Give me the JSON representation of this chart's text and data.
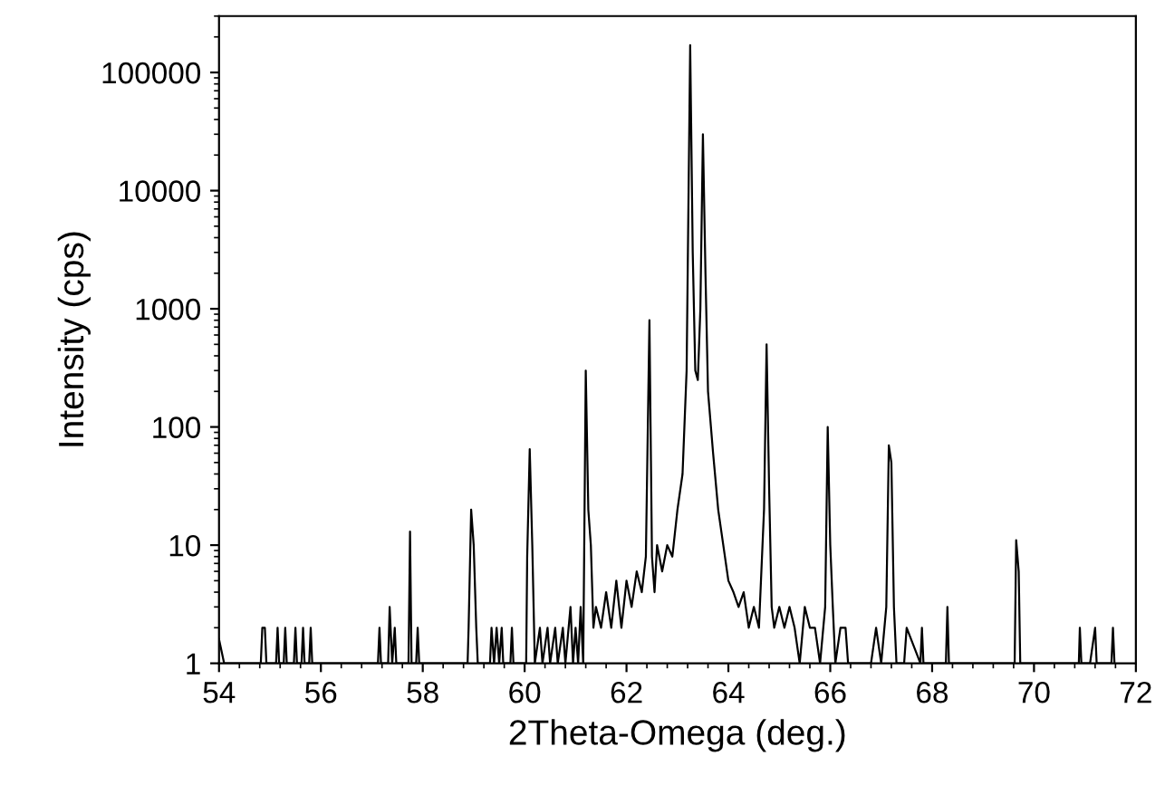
{
  "chart_data": {
    "type": "line",
    "xlabel": "2Theta-Omega (deg.)",
    "ylabel": "Intensity (cps)",
    "log": "y",
    "xlim": [
      54,
      72
    ],
    "ylim": [
      1,
      300000
    ],
    "xticks": [
      54,
      56,
      58,
      60,
      62,
      64,
      66,
      68,
      70,
      72
    ],
    "yticks": [
      1,
      10,
      100,
      1000,
      10000,
      100000
    ],
    "grid": false,
    "marker": "none",
    "line_style": "solid",
    "series": [
      {
        "color": "#000000",
        "x": [
          54.0,
          54.1,
          54.82,
          54.85,
          54.9,
          54.93,
          55.12,
          55.15,
          55.18,
          55.27,
          55.3,
          55.33,
          55.47,
          55.5,
          55.53,
          55.62,
          55.65,
          55.68,
          55.77,
          55.8,
          55.83,
          57.12,
          57.15,
          57.18,
          57.32,
          57.35,
          57.4,
          57.45,
          57.48,
          57.72,
          57.75,
          57.78,
          57.87,
          57.9,
          57.93,
          58.88,
          58.9,
          58.95,
          59.0,
          59.05,
          59.08,
          59.32,
          59.35,
          59.4,
          59.45,
          59.5,
          59.55,
          59.58,
          59.72,
          59.75,
          59.78,
          60.03,
          60.05,
          60.1,
          60.15,
          60.2,
          60.3,
          60.35,
          60.45,
          60.5,
          60.6,
          60.65,
          60.75,
          60.8,
          60.9,
          60.95,
          61.0,
          61.05,
          61.1,
          61.15,
          61.2,
          61.25,
          61.3,
          61.35,
          61.4,
          61.5,
          61.6,
          61.7,
          61.8,
          61.9,
          62.0,
          62.1,
          62.2,
          62.3,
          62.38,
          62.45,
          62.5,
          62.55,
          62.6,
          62.7,
          62.8,
          62.9,
          63.0,
          63.1,
          63.18,
          63.25,
          63.3,
          63.35,
          63.4,
          63.45,
          63.5,
          63.55,
          63.6,
          63.7,
          63.8,
          63.9,
          64.0,
          64.1,
          64.2,
          64.3,
          64.4,
          64.5,
          64.6,
          64.7,
          64.75,
          64.8,
          64.85,
          64.9,
          65.0,
          65.1,
          65.2,
          65.3,
          65.4,
          65.5,
          65.6,
          65.7,
          65.8,
          65.9,
          65.95,
          66.0,
          66.05,
          66.1,
          66.2,
          66.3,
          66.35,
          66.8,
          66.9,
          67.0,
          67.1,
          67.15,
          67.2,
          67.25,
          67.3,
          67.45,
          67.5,
          67.77,
          67.8,
          67.83,
          68.27,
          68.3,
          68.33,
          69.62,
          69.65,
          69.7,
          69.73,
          70.88,
          70.9,
          70.93,
          71.1,
          71.2,
          71.23,
          71.52,
          71.55,
          71.58
        ],
        "values": [
          1.6,
          1,
          1,
          2,
          2,
          1,
          1,
          2,
          1,
          1,
          2,
          1,
          1,
          2,
          1,
          1,
          2,
          1,
          1,
          2,
          1,
          1,
          2,
          1,
          1,
          3,
          1,
          2,
          1,
          1,
          13,
          1,
          1,
          2,
          1,
          1,
          2,
          20,
          10,
          2,
          1,
          1,
          2,
          1,
          2,
          1,
          2,
          1,
          1,
          2,
          1,
          1,
          8,
          65,
          10,
          1,
          2,
          1,
          2,
          1,
          2,
          1,
          2,
          1,
          3,
          1,
          2,
          1,
          3,
          1,
          300,
          20,
          10,
          2,
          3,
          2,
          4,
          2,
          5,
          2,
          5,
          3,
          6,
          4,
          8,
          800,
          8,
          4,
          10,
          6,
          10,
          8,
          20,
          40,
          300,
          170000,
          3000,
          300,
          250,
          1000,
          30000,
          2000,
          200,
          60,
          20,
          10,
          5,
          4,
          3,
          4,
          2,
          3,
          2,
          20,
          500,
          30,
          3,
          2,
          3,
          2,
          3,
          2,
          1,
          3,
          2,
          2,
          1,
          3,
          100,
          10,
          3,
          1,
          2,
          2,
          1,
          1,
          2,
          1,
          3,
          70,
          50,
          3,
          1,
          1,
          2,
          1,
          2,
          1,
          1,
          3,
          1,
          1,
          11,
          6,
          1,
          1,
          2,
          1,
          1,
          2,
          1,
          1,
          2,
          1
        ]
      }
    ]
  }
}
